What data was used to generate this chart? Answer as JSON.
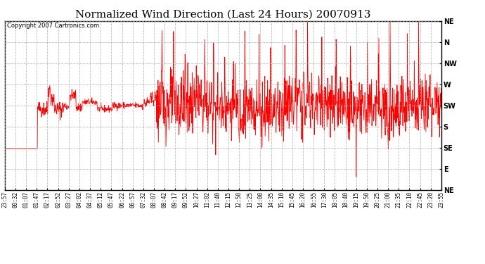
{
  "title": "Normalized Wind Direction (Last 24 Hours) 20070913",
  "copyright_text": "Copyright 2007 Cartronics.com",
  "line_color": "#FF0000",
  "background_color": "#FFFFFF",
  "plot_bg_color": "#FFFFFF",
  "grid_color": "#AAAAAA",
  "border_color": "#000000",
  "ytick_labels": [
    "NE",
    "N",
    "NW",
    "W",
    "SW",
    "S",
    "SE",
    "E",
    "NE"
  ],
  "ytick_values": [
    1.0,
    0.875,
    0.75,
    0.625,
    0.5,
    0.375,
    0.25,
    0.125,
    0.0
  ],
  "ylim": [
    0.0,
    1.0
  ],
  "xtick_labels": [
    "23:57",
    "00:32",
    "01:07",
    "01:47",
    "02:17",
    "02:52",
    "03:27",
    "04:02",
    "04:37",
    "05:12",
    "05:47",
    "06:22",
    "06:57",
    "07:32",
    "08:07",
    "08:42",
    "09:17",
    "09:52",
    "10:27",
    "11:02",
    "11:40",
    "12:15",
    "12:50",
    "13:25",
    "14:00",
    "14:35",
    "15:10",
    "15:45",
    "16:20",
    "16:55",
    "17:30",
    "18:05",
    "18:40",
    "19:15",
    "19:50",
    "20:25",
    "21:00",
    "21:35",
    "22:10",
    "22:45",
    "23:20",
    "23:55"
  ],
  "figsize": [
    6.9,
    3.75
  ],
  "dpi": 100,
  "title_fontsize": 11,
  "copyright_fontsize": 6,
  "tick_fontsize": 5.5,
  "ytick_fontsize": 7
}
